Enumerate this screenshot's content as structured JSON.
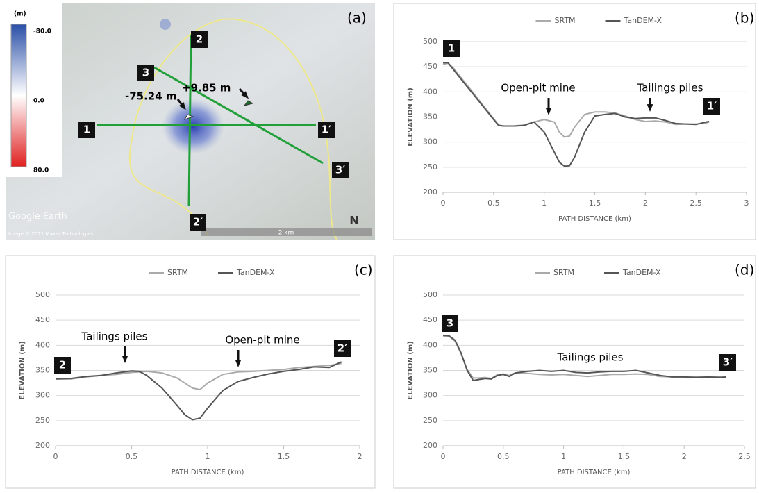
{
  "map": {
    "panel_label": "(a)",
    "unit": "(m)",
    "scale_labels": [
      "-80.0",
      "0.0",
      "80.0"
    ],
    "section_labels": [
      "1",
      "1′",
      "2",
      "2′",
      "3",
      "3′"
    ],
    "annotations": [
      "-75.24 m",
      "+9.85 m"
    ],
    "brand": "Google Earth",
    "credit": "Image © 2021 Maxar Technologies",
    "scale_bar": "2 km",
    "north": "N"
  },
  "chart_data": [
    {
      "type": "line",
      "panel_label": "(b)",
      "xlabel": "PATH DISTANCE (km)",
      "ylabel": "ELEVATION (m)",
      "xlim": [
        0,
        3
      ],
      "xticks": [
        0,
        0.5,
        1,
        1.5,
        2,
        2.5,
        3
      ],
      "ylim": [
        200,
        500
      ],
      "yticks": [
        200,
        250,
        300,
        350,
        400,
        450,
        500
      ],
      "x": [
        0,
        0.05,
        0.1,
        0.2,
        0.3,
        0.4,
        0.5,
        0.55,
        0.6,
        0.7,
        0.8,
        0.9,
        1.0,
        1.1,
        1.15,
        1.2,
        1.25,
        1.3,
        1.4,
        1.5,
        1.6,
        1.7,
        1.8,
        1.9,
        2.0,
        2.1,
        2.2,
        2.3,
        2.4,
        2.5,
        2.6,
        2.63
      ],
      "series": [
        {
          "name": "SRTM",
          "color": "#aaaaaa",
          "values": [
            455,
            457,
            448,
            423,
            398,
            372,
            347,
            334,
            332,
            332,
            334,
            340,
            345,
            340,
            320,
            310,
            312,
            330,
            355,
            360,
            360,
            358,
            352,
            345,
            341,
            342,
            340,
            335,
            336,
            336,
            338,
            340
          ]
        },
        {
          "name": "TanDEM-X",
          "color": "#555555",
          "values": [
            458,
            458,
            445,
            420,
            395,
            370,
            345,
            333,
            332,
            332,
            333,
            340,
            320,
            280,
            260,
            252,
            253,
            270,
            320,
            352,
            355,
            357,
            350,
            347,
            348,
            348,
            343,
            337,
            336,
            335,
            340,
            341
          ]
        }
      ],
      "annotations": [
        "Open-pit mine",
        "Tailings piles"
      ],
      "endpoint_labels": [
        "1",
        "1′"
      ]
    },
    {
      "type": "line",
      "panel_label": "(c)",
      "xlabel": "PATH DISTANCE (km)",
      "ylabel": "ELEVATION (m)",
      "xlim": [
        0,
        2
      ],
      "xticks": [
        0,
        0.5,
        1,
        1.5,
        2
      ],
      "ylim": [
        200,
        500
      ],
      "yticks": [
        200,
        250,
        300,
        350,
        400,
        450,
        500
      ],
      "x": [
        0,
        0.1,
        0.2,
        0.3,
        0.4,
        0.5,
        0.55,
        0.6,
        0.7,
        0.8,
        0.85,
        0.9,
        0.95,
        1.0,
        1.1,
        1.2,
        1.3,
        1.4,
        1.5,
        1.6,
        1.7,
        1.8,
        1.88
      ],
      "series": [
        {
          "name": "SRTM",
          "color": "#aaaaaa",
          "values": [
            333,
            333,
            337,
            340,
            342,
            346,
            347,
            348,
            345,
            335,
            325,
            315,
            312,
            325,
            342,
            347,
            348,
            350,
            352,
            356,
            358,
            360,
            364
          ]
        },
        {
          "name": "TanDEM-X",
          "color": "#555555",
          "values": [
            333,
            334,
            338,
            340,
            345,
            349,
            348,
            340,
            315,
            280,
            262,
            252,
            255,
            275,
            310,
            328,
            336,
            343,
            348,
            352,
            357,
            356,
            367
          ]
        }
      ],
      "annotations": [
        "Tailings piles",
        "Open-pit mine"
      ],
      "endpoint_labels": [
        "2",
        "2′"
      ]
    },
    {
      "type": "line",
      "panel_label": "(d)",
      "xlabel": "PATH DISTANCE (km)",
      "ylabel": "ELEVATION (m)",
      "xlim": [
        0,
        2.5
      ],
      "xticks": [
        0,
        0.5,
        1,
        1.5,
        2,
        2.5
      ],
      "ylim": [
        200,
        500
      ],
      "yticks": [
        200,
        250,
        300,
        350,
        400,
        450,
        500
      ],
      "x": [
        0,
        0.05,
        0.1,
        0.15,
        0.2,
        0.25,
        0.3,
        0.35,
        0.4,
        0.45,
        0.5,
        0.55,
        0.6,
        0.7,
        0.8,
        0.9,
        1.0,
        1.1,
        1.2,
        1.3,
        1.4,
        1.5,
        1.6,
        1.7,
        1.8,
        1.9,
        2.0,
        2.1,
        2.2,
        2.3,
        2.35
      ],
      "series": [
        {
          "name": "SRTM",
          "color": "#aaaaaa",
          "values": [
            418,
            418,
            408,
            383,
            352,
            335,
            335,
            336,
            334,
            341,
            343,
            340,
            345,
            344,
            342,
            341,
            342,
            340,
            338,
            340,
            342,
            342,
            343,
            342,
            338,
            337,
            337,
            338,
            337,
            338,
            338
          ]
        },
        {
          "name": "TanDEM-X",
          "color": "#555555",
          "values": [
            420,
            419,
            410,
            385,
            350,
            330,
            332,
            334,
            333,
            340,
            342,
            338,
            345,
            348,
            350,
            348,
            350,
            346,
            345,
            347,
            348,
            348,
            350,
            345,
            340,
            337,
            337,
            336,
            337,
            336,
            337
          ]
        }
      ],
      "annotations": [
        "Tailings piles"
      ],
      "endpoint_labels": [
        "3",
        "3′"
      ]
    }
  ]
}
